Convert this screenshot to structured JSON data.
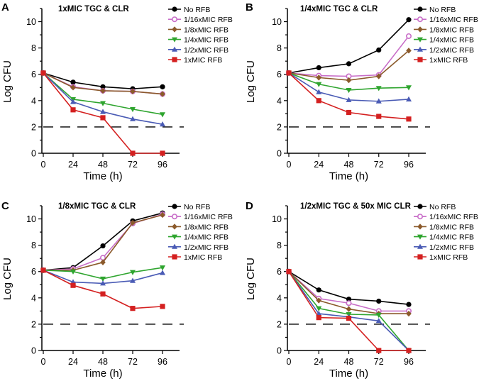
{
  "figure": {
    "panels": [
      {
        "letter": "A",
        "title": "1xMIC TGC & CLR"
      },
      {
        "letter": "B",
        "title": "1/4xMIC TGC & CLR"
      },
      {
        "letter": "C",
        "title": "1/8xMIC TGC & CLR"
      },
      {
        "letter": "D",
        "title": "1/2xMIC TGC & 50x MIC CLR"
      }
    ]
  },
  "legend": {
    "entries": [
      {
        "name": "No RFB",
        "color": "#000000",
        "marker": "circle"
      },
      {
        "name": "1/16xMIC RFB",
        "color": "#c86dc8",
        "marker": "open-circle"
      },
      {
        "name": "1/8xMIC RFB",
        "color": "#8b5a2b",
        "marker": "diamond"
      },
      {
        "name": "1/4xMIC RFB",
        "color": "#2fa52f",
        "marker": "triangle-down"
      },
      {
        "name": "1/2xMIC RFB",
        "color": "#4a5bb5",
        "marker": "triangle-up"
      },
      {
        "name": "1xMIC RFB",
        "color": "#d42020",
        "marker": "square"
      }
    ]
  },
  "chart_data": [
    {
      "type": "line",
      "panel": "A",
      "title": "1xMIC TGC & CLR",
      "xlabel": "Time (h)",
      "ylabel": "Log CFU",
      "x": [
        0,
        24,
        48,
        72,
        96
      ],
      "xticks": [
        0,
        24,
        48,
        72,
        96
      ],
      "ylim": [
        0,
        11
      ],
      "yticks": [
        0,
        2,
        4,
        6,
        8,
        10
      ],
      "reference_line_y": 2,
      "series": [
        {
          "name": "No RFB",
          "values": [
            6.1,
            5.4,
            5.05,
            4.9,
            5.05
          ]
        },
        {
          "name": "1/16xMIC RFB",
          "values": [
            6.1,
            5.05,
            4.75,
            4.7,
            4.5
          ]
        },
        {
          "name": "1/8xMIC RFB",
          "values": [
            6.1,
            5.0,
            4.75,
            4.7,
            4.5
          ]
        },
        {
          "name": "1/4xMIC RFB",
          "values": [
            6.1,
            4.1,
            3.8,
            3.35,
            2.95
          ]
        },
        {
          "name": "1/2xMIC RFB",
          "values": [
            6.1,
            3.9,
            3.15,
            2.6,
            2.2
          ]
        },
        {
          "name": "1xMIC RFB",
          "values": [
            6.1,
            3.3,
            2.7,
            0.0,
            0.0
          ]
        }
      ]
    },
    {
      "type": "line",
      "panel": "B",
      "title": "1/4xMIC TGC & CLR",
      "xlabel": "Time (h)",
      "ylabel": "Log CFU",
      "x": [
        0,
        24,
        48,
        72,
        96
      ],
      "xticks": [
        0,
        24,
        48,
        72,
        96
      ],
      "ylim": [
        0,
        11
      ],
      "yticks": [
        0,
        2,
        4,
        6,
        8,
        10
      ],
      "reference_line_y": 2,
      "series": [
        {
          "name": "No RFB",
          "values": [
            6.1,
            6.5,
            6.8,
            7.85,
            10.15
          ]
        },
        {
          "name": "1/16xMIC RFB",
          "values": [
            6.1,
            5.9,
            5.85,
            5.95,
            8.9
          ]
        },
        {
          "name": "1/8xMIC RFB",
          "values": [
            6.1,
            5.75,
            5.55,
            5.85,
            7.8
          ]
        },
        {
          "name": "1/4xMIC RFB",
          "values": [
            6.1,
            5.25,
            4.8,
            4.95,
            5.0
          ]
        },
        {
          "name": "1/2xMIC RFB",
          "values": [
            6.1,
            4.65,
            4.05,
            3.95,
            4.1
          ]
        },
        {
          "name": "1xMIC RFB",
          "values": [
            6.1,
            4.0,
            3.1,
            2.8,
            2.6
          ]
        }
      ]
    },
    {
      "type": "line",
      "panel": "C",
      "title": "1/8xMIC TGC & CLR",
      "xlabel": "Time (h)",
      "ylabel": "Log CFU",
      "x": [
        0,
        24,
        48,
        72,
        96
      ],
      "xticks": [
        0,
        24,
        48,
        72,
        96
      ],
      "ylim": [
        0,
        11
      ],
      "yticks": [
        0,
        2,
        4,
        6,
        8,
        10
      ],
      "reference_line_y": 2,
      "series": [
        {
          "name": "No RFB",
          "values": [
            6.1,
            6.3,
            7.95,
            9.85,
            10.45
          ]
        },
        {
          "name": "1/16xMIC RFB",
          "values": [
            6.1,
            6.2,
            7.05,
            9.65,
            10.35
          ]
        },
        {
          "name": "1/8xMIC RFB",
          "values": [
            6.1,
            6.1,
            6.7,
            9.7,
            10.3
          ]
        },
        {
          "name": "1/4xMIC RFB",
          "values": [
            6.1,
            6.0,
            5.45,
            5.95,
            6.3
          ]
        },
        {
          "name": "1/2xMIC RFB",
          "values": [
            6.1,
            5.2,
            5.1,
            5.3,
            5.9
          ]
        },
        {
          "name": "1xMIC RFB",
          "values": [
            6.1,
            4.95,
            4.3,
            3.2,
            3.35
          ]
        }
      ]
    },
    {
      "type": "line",
      "panel": "D",
      "title": "1/2xMIC TGC & 50x MIC CLR",
      "xlabel": "Time (h)",
      "ylabel": "Log CFU",
      "x": [
        0,
        24,
        48,
        72,
        96
      ],
      "xticks": [
        0,
        24,
        48,
        72,
        96
      ],
      "ylim": [
        0,
        11
      ],
      "yticks": [
        0,
        2,
        4,
        6,
        8,
        10
      ],
      "reference_line_y": 2,
      "series": [
        {
          "name": "No RFB",
          "values": [
            6.0,
            4.6,
            3.9,
            3.75,
            3.5
          ]
        },
        {
          "name": "1/16xMIC RFB",
          "values": [
            6.0,
            3.95,
            3.6,
            3.0,
            3.0
          ]
        },
        {
          "name": "1/8xMIC RFB",
          "values": [
            6.0,
            3.8,
            3.15,
            2.8,
            2.8
          ]
        },
        {
          "name": "1/4xMIC RFB",
          "values": [
            6.0,
            3.2,
            2.75,
            2.7,
            0.0
          ]
        },
        {
          "name": "1/2xMIC RFB",
          "values": [
            6.0,
            2.8,
            2.55,
            2.25,
            0.0
          ]
        },
        {
          "name": "1xMIC RFB",
          "values": [
            6.0,
            2.5,
            2.45,
            0.0,
            0.0
          ]
        }
      ]
    }
  ]
}
